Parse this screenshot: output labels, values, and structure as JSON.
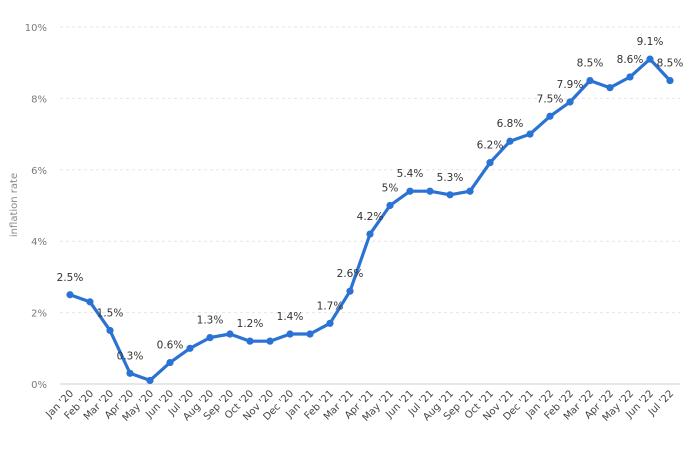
{
  "chart_data": {
    "type": "line",
    "ylabel": "inflation rate",
    "ylim": [
      0,
      10
    ],
    "y_ticks": [
      0,
      2,
      4,
      6,
      8,
      10
    ],
    "y_tick_labels": [
      "0%",
      "2%",
      "4%",
      "6%",
      "8%",
      "10%"
    ],
    "grid": true,
    "line_color": "#2a72d4",
    "categories": [
      "Jan '20",
      "Feb '20",
      "Mar '20",
      "Apr '20",
      "May '20",
      "Jun '20",
      "Jul '20",
      "Aug '20",
      "Sep '20",
      "Oct '20",
      "Nov '20",
      "Dec '20",
      "Jan '21",
      "Feb '21",
      "Mar '21",
      "Apr '21",
      "May '21",
      "Jun '21",
      "Jul '21",
      "Aug '21",
      "Sep '21",
      "Oct '21",
      "Nov '21",
      "Dec '21",
      "Jan '22",
      "Feb '22",
      "Mar '22",
      "Apr '22",
      "May '22",
      "Jun '22",
      "Jul '22"
    ],
    "values": [
      2.5,
      2.3,
      1.5,
      0.3,
      0.1,
      0.6,
      1.0,
      1.3,
      1.4,
      1.2,
      1.2,
      1.4,
      1.4,
      1.7,
      2.6,
      4.2,
      5.0,
      5.4,
      5.4,
      5.3,
      5.4,
      6.2,
      6.8,
      7.0,
      7.5,
      7.9,
      8.5,
      8.3,
      8.6,
      9.1,
      8.5
    ],
    "data_labels": [
      "2.5%",
      "",
      "1.5%",
      "0.3%",
      "",
      "0.6%",
      "",
      "1.3%",
      "",
      "1.2%",
      "",
      "1.4%",
      "",
      "1.7%",
      "2.6%",
      "4.2%",
      "5%",
      "5.4%",
      "",
      "5.3%",
      "",
      "6.2%",
      "6.8%",
      "",
      "7.5%",
      "7.9%",
      "8.5%",
      "",
      "8.6%",
      "9.1%",
      "8.5%"
    ]
  }
}
